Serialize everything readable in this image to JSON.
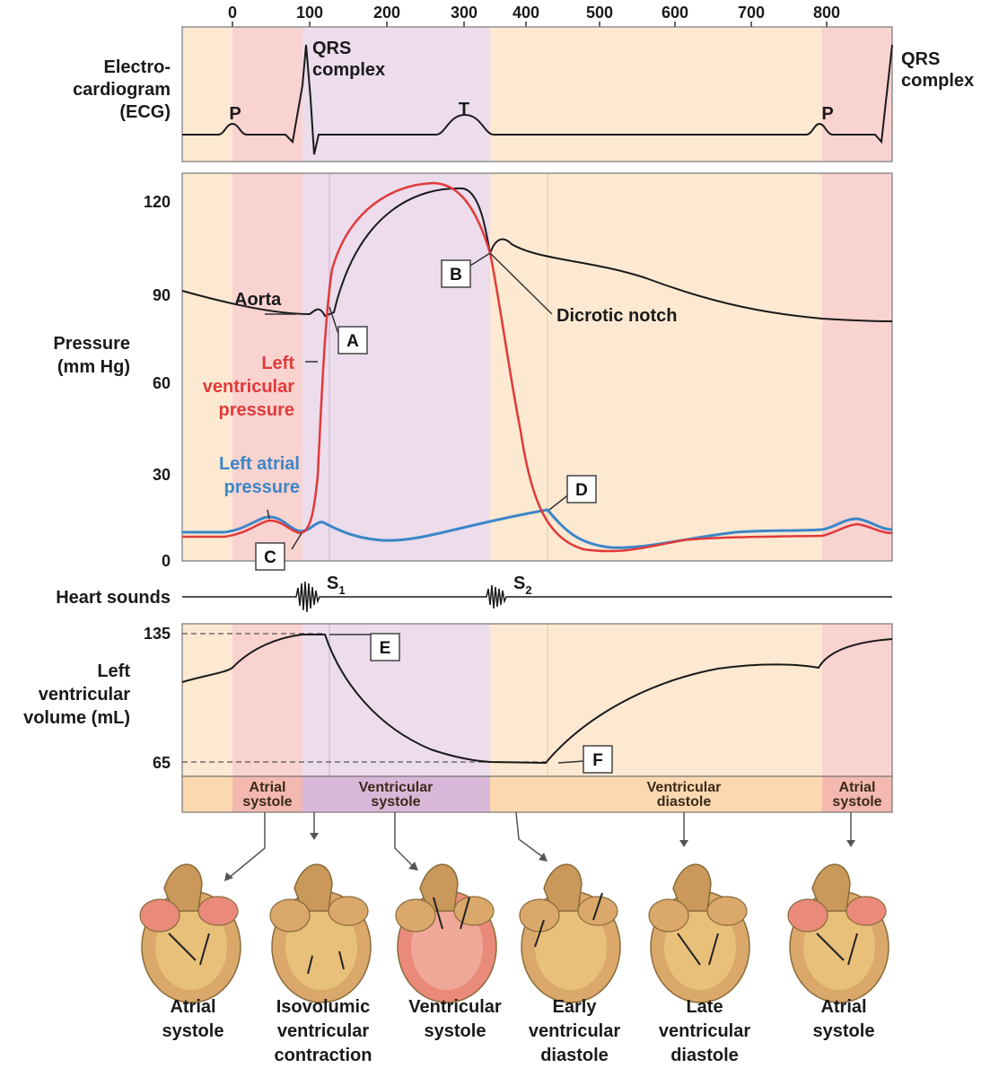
{
  "time_axis": {
    "ticks": [
      "0",
      "100",
      "200",
      "300",
      "400",
      "500",
      "600",
      "700",
      "800"
    ]
  },
  "ecg": {
    "label": [
      "Electro-",
      "cardiogram",
      "(ECG)"
    ],
    "p_wave": "P",
    "t_wave": "T",
    "qrs_label": [
      "QRS",
      "complex"
    ]
  },
  "pressure": {
    "axis_label": [
      "Pressure",
      "(mm Hg)"
    ],
    "ticks": [
      "120",
      "90",
      "60",
      "30",
      "0"
    ],
    "aorta_label": "Aorta",
    "lv_label": [
      "Left",
      "ventricular",
      "pressure"
    ],
    "la_label": [
      "Left atrial",
      "pressure"
    ],
    "dicrotic_label": "Dicrotic notch",
    "points": {
      "a": "A",
      "b": "B",
      "c": "C",
      "d": "D"
    }
  },
  "heart_sounds": {
    "label": "Heart sounds",
    "s1": "S",
    "s1_sub": "1",
    "s2": "S",
    "s2_sub": "2"
  },
  "volume": {
    "axis_label": [
      "Left",
      "ventricular",
      "volume (mL)"
    ],
    "ticks": [
      "135",
      "65"
    ],
    "points": {
      "e": "E",
      "f": "F"
    }
  },
  "phases": [
    {
      "lines": [
        "Atrial",
        "systole"
      ]
    },
    {
      "lines": [
        "Ventricular",
        "systole"
      ]
    },
    {
      "lines": [
        "Ventricular",
        "diastole"
      ]
    },
    {
      "lines": [
        "Atrial",
        "systole"
      ]
    }
  ],
  "stages": [
    {
      "lines": [
        "Atrial",
        "systole"
      ]
    },
    {
      "lines": [
        "Isovolumic",
        "ventricular",
        "contraction"
      ]
    },
    {
      "lines": [
        "Ventricular",
        "systole"
      ]
    },
    {
      "lines": [
        "Early",
        "ventricular",
        "diastole"
      ]
    },
    {
      "lines": [
        "Late",
        "ventricular",
        "diastole"
      ]
    },
    {
      "lines": [
        "Atrial",
        "systole"
      ]
    }
  ],
  "colors": {
    "diastole_bg": "#fde9d2",
    "atrial_bg": "#f9d3d0",
    "ventricular_bg": "#ecdcec",
    "lv_pressure": "#e03a3a",
    "la_pressure": "#3b86c8",
    "heart_tissue": "#d9a86a",
    "heart_contracting": "#ea8a7a"
  }
}
